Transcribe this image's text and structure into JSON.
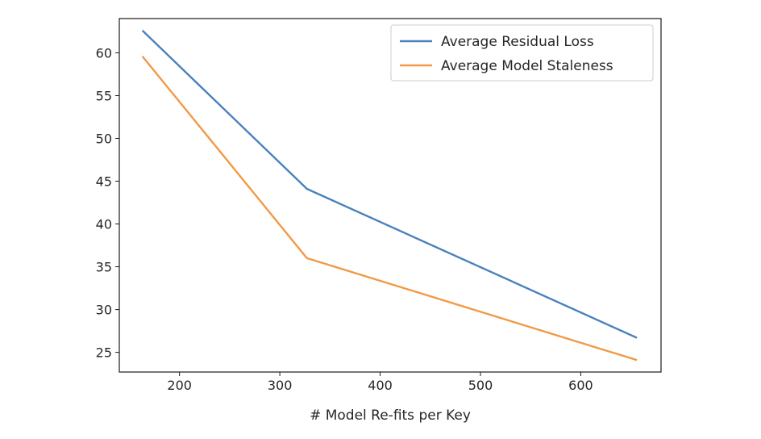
{
  "chart_data": {
    "type": "line",
    "title": "",
    "xlabel": "# Model Re-fits per Key",
    "ylabel": "",
    "xlim": [
      140,
      680
    ],
    "ylim": [
      22.7,
      64.0
    ],
    "xticks": [
      200,
      300,
      400,
      500,
      600
    ],
    "yticks": [
      25,
      30,
      35,
      40,
      45,
      50,
      55,
      60
    ],
    "grid": false,
    "legend_position": "top-right",
    "series": [
      {
        "name": "Average Residual Loss",
        "color": "#4a82bd",
        "x": [
          163,
          327,
          656
        ],
        "y": [
          62.6,
          44.1,
          26.7
        ]
      },
      {
        "name": "Average Model Staleness",
        "color": "#f29a45",
        "x": [
          163,
          327,
          656
        ],
        "y": [
          59.6,
          36.0,
          24.1
        ]
      }
    ]
  }
}
